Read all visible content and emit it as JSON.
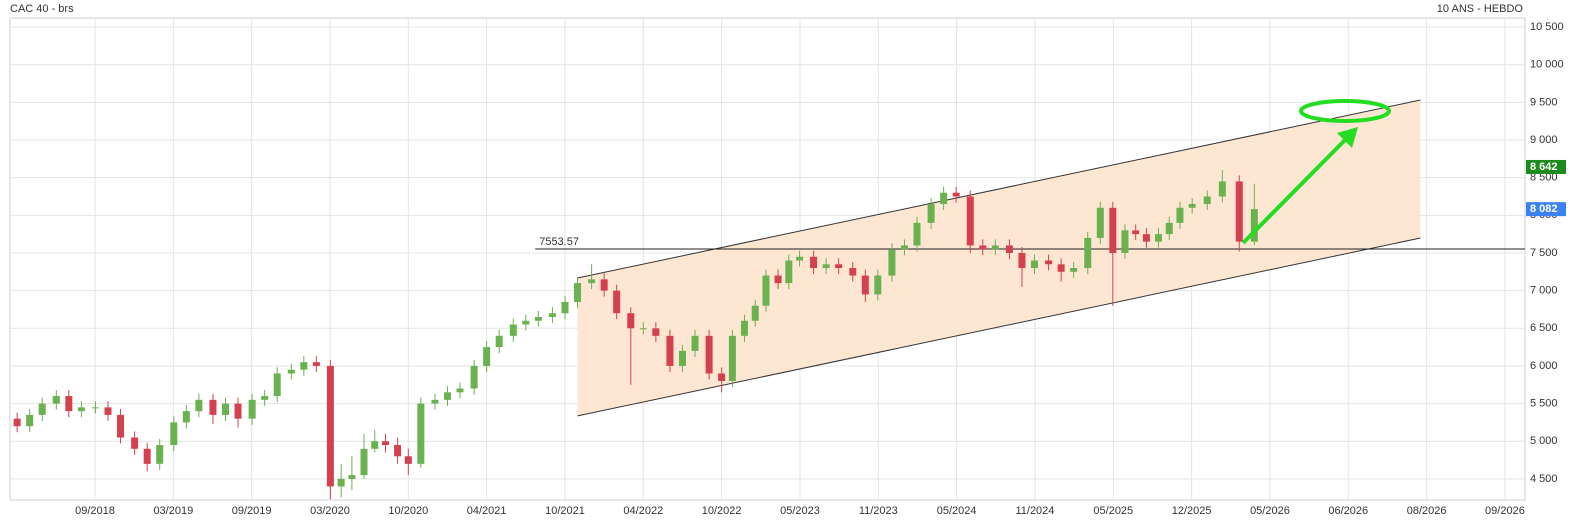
{
  "chart_data": {
    "type": "candlestick",
    "title": "CAC 40 - brs",
    "subtitle": "10 ANS - HEBDO",
    "up_color": "#6ab150",
    "down_color": "#d5404f",
    "grid": true,
    "xlim": [
      2018.12,
      2026.69
    ],
    "ylim": [
      4220,
      10620
    ],
    "xticks": [
      {
        "value": 2018.667,
        "label": "09/2018"
      },
      {
        "value": 2019.167,
        "label": "03/2019"
      },
      {
        "value": 2019.667,
        "label": "09/2019"
      },
      {
        "value": 2020.167,
        "label": "03/2020"
      },
      {
        "value": 2020.75,
        "label": "10/2020"
      },
      {
        "value": 2021.25,
        "label": "04/2021"
      },
      {
        "value": 2021.75,
        "label": "10/2021"
      },
      {
        "value": 2022.25,
        "label": "04/2022"
      },
      {
        "value": 2022.75,
        "label": "10/2022"
      },
      {
        "value": 2023.333,
        "label": "05/2023"
      },
      {
        "value": 2023.833,
        "label": "11/2023"
      },
      {
        "value": 2024.333,
        "label": "05/2024"
      },
      {
        "value": 2024.833,
        "label": "11/2024"
      },
      {
        "value": 2025.333,
        "label": "05/2025"
      },
      {
        "value": 2025.917,
        "label": "12/2025"
      },
      {
        "value": 2026.333,
        "label": "05/2026"
      },
      {
        "value": 2026.417,
        "label": "06/2026"
      },
      {
        "value": 2026.583,
        "label": "08/2026"
      },
      {
        "value": 2026.667,
        "label": "09/2026"
      }
    ],
    "yticks": [
      {
        "value": 4500,
        "label": "4 500"
      },
      {
        "value": 5000,
        "label": "5 000"
      },
      {
        "value": 5500,
        "label": "5 500"
      },
      {
        "value": 6000,
        "label": "6 000"
      },
      {
        "value": 6500,
        "label": "6 500"
      },
      {
        "value": 7000,
        "label": "7 000"
      },
      {
        "value": 7500,
        "label": "7 500"
      },
      {
        "value": 8000,
        "label": "8 000"
      },
      {
        "value": 8500,
        "label": "8 500"
      },
      {
        "value": 9000,
        "label": "9 000"
      },
      {
        "value": 9500,
        "label": "9 500"
      },
      {
        "value": 10000,
        "label": "10 000"
      },
      {
        "value": 10500,
        "label": "10 500"
      }
    ],
    "x": [
      2018.17,
      2018.25,
      2018.33,
      2018.42,
      2018.5,
      2018.58,
      2018.67,
      2018.75,
      2018.83,
      2018.92,
      2019,
      2019.08,
      2019.17,
      2019.25,
      2019.33,
      2019.42,
      2019.5,
      2019.58,
      2019.67,
      2019.75,
      2019.83,
      2019.92,
      2020,
      2020.08,
      2020.17,
      2020.25,
      2020.33,
      2020.42,
      2020.5,
      2020.58,
      2020.67,
      2020.75,
      2020.83,
      2020.92,
      2021,
      2021.08,
      2021.17,
      2021.25,
      2021.33,
      2021.42,
      2021.5,
      2021.58,
      2021.67,
      2021.75,
      2021.83,
      2021.92,
      2022,
      2022.08,
      2022.17,
      2022.25,
      2022.33,
      2022.42,
      2022.5,
      2022.58,
      2022.67,
      2022.75,
      2022.83,
      2022.92,
      2023,
      2023.08,
      2023.17,
      2023.25,
      2023.33,
      2023.42,
      2023.5,
      2023.58,
      2023.67,
      2023.75,
      2023.83,
      2023.92,
      2024,
      2024.08,
      2024.17,
      2024.25,
      2024.33,
      2024.42,
      2024.5,
      2024.58,
      2024.67,
      2024.75,
      2024.83,
      2024.92,
      2025,
      2025.08,
      2025.17,
      2025.25,
      2025.33,
      2025.42,
      2025.5,
      2025.58,
      2025.67,
      2025.75,
      2025.83,
      2025.92,
      2026,
      2026.08,
      2026.17,
      2026.25
    ],
    "open": [
      5300,
      5200,
      5350,
      5500,
      5600,
      5400,
      5450,
      5450,
      5350,
      5050,
      4900,
      4700,
      4950,
      5250,
      5400,
      5550,
      5350,
      5500,
      5300,
      5550,
      5600,
      5900,
      5950,
      6050,
      6000,
      4400,
      4500,
      4550,
      4900,
      5000,
      4950,
      4800,
      4700,
      5500,
      5550,
      5650,
      5700,
      6000,
      6250,
      6400,
      6550,
      6600,
      6650,
      6700,
      6850,
      7100,
      7150,
      7000,
      6700,
      6500,
      6500,
      6400,
      6000,
      6200,
      6400,
      5900,
      5800,
      6400,
      6600,
      6800,
      7200,
      7100,
      7400,
      7450,
      7300,
      7350,
      7300,
      7200,
      6950,
      7200,
      7550,
      7600,
      7900,
      8150,
      8300,
      8250,
      7600,
      7550,
      7600,
      7500,
      7300,
      7400,
      7350,
      7250,
      7300,
      7700,
      8100,
      7500,
      7800,
      7750,
      7650,
      7750,
      7900,
      8100,
      8150,
      8250,
      8450,
      7650
    ],
    "high": [
      5380,
      5430,
      5580,
      5680,
      5680,
      5530,
      5530,
      5530,
      5430,
      5130,
      4980,
      5030,
      5330,
      5480,
      5630,
      5630,
      5580,
      5580,
      5630,
      5680,
      5980,
      6030,
      6130,
      6130,
      6080,
      4700,
      4800,
      5100,
      5150,
      5100,
      5050,
      4900,
      5580,
      5630,
      5730,
      5780,
      6080,
      6330,
      6480,
      6630,
      6680,
      6730,
      6780,
      6930,
      7180,
      7350,
      7230,
      7080,
      6780,
      6580,
      6580,
      6480,
      6280,
      6480,
      6480,
      5980,
      6480,
      6680,
      6880,
      7280,
      7280,
      7480,
      7530,
      7530,
      7430,
      7430,
      7380,
      7280,
      7280,
      7630,
      7680,
      7980,
      8230,
      8380,
      8380,
      8330,
      7680,
      7680,
      7680,
      7580,
      7480,
      7480,
      7430,
      7380,
      7780,
      8180,
      8180,
      7880,
      7880,
      7830,
      7830,
      7980,
      8180,
      8230,
      8330,
      8600,
      8530,
      8420
    ],
    "low": [
      5120,
      5120,
      5270,
      5420,
      5320,
      5320,
      5370,
      5270,
      4970,
      4820,
      4600,
      4620,
      4870,
      5170,
      5320,
      5230,
      5270,
      5180,
      5220,
      5470,
      5520,
      5820,
      5870,
      5920,
      4230,
      4250,
      4350,
      4500,
      4850,
      4850,
      4700,
      4550,
      4650,
      5420,
      5470,
      5570,
      5620,
      5920,
      6170,
      6320,
      6470,
      6520,
      6570,
      6620,
      6770,
      7020,
      6920,
      6620,
      5750,
      6420,
      6320,
      5920,
      5920,
      6120,
      5820,
      5650,
      5720,
      6320,
      6520,
      6720,
      7020,
      7020,
      7320,
      7220,
      7220,
      7220,
      7120,
      6850,
      6870,
      7120,
      7470,
      7520,
      7820,
      8070,
      8170,
      7500,
      7470,
      7470,
      7420,
      7050,
      7220,
      7270,
      7120,
      7170,
      7220,
      7620,
      6800,
      7420,
      7670,
      7570,
      7570,
      7670,
      7820,
      8020,
      8070,
      8170,
      7520,
      7600
    ],
    "close": [
      5200,
      5350,
      5500,
      5600,
      5400,
      5450,
      5450,
      5350,
      5050,
      4900,
      4700,
      4950,
      5250,
      5400,
      5550,
      5350,
      5500,
      5300,
      5550,
      5600,
      5900,
      5950,
      6050,
      6000,
      4400,
      4500,
      4550,
      4900,
      5000,
      4950,
      4800,
      4700,
      5500,
      5550,
      5650,
      5700,
      6000,
      6250,
      6400,
      6550,
      6600,
      6650,
      6700,
      6850,
      7100,
      7150,
      7000,
      6700,
      6500,
      6500,
      6400,
      6000,
      6200,
      6400,
      5900,
      5800,
      6400,
      6600,
      6800,
      7200,
      7100,
      7400,
      7450,
      7300,
      7350,
      7300,
      7200,
      6950,
      7200,
      7550,
      7600,
      7900,
      8150,
      8300,
      8250,
      7600,
      7550,
      7600,
      7500,
      7300,
      7400,
      7350,
      7250,
      7300,
      7700,
      8100,
      7500,
      7800,
      7750,
      7650,
      7750,
      7900,
      8100,
      8150,
      8250,
      8450,
      7650,
      8082
    ],
    "channel": {
      "x": [
        2021.83,
        2026.57
      ],
      "upper": [
        7168,
        9531
      ],
      "lower": [
        5337,
        7699
      ],
      "fill": "#fde7d2"
    },
    "hline": {
      "value": 7553.57,
      "start": 2021.56
    },
    "price_markers": [
      {
        "value": 8642,
        "label": "8 642",
        "color": "#1c8a1c"
      },
      {
        "value": 8082,
        "label": "8 082",
        "color": "#3b82f0"
      }
    ]
  }
}
